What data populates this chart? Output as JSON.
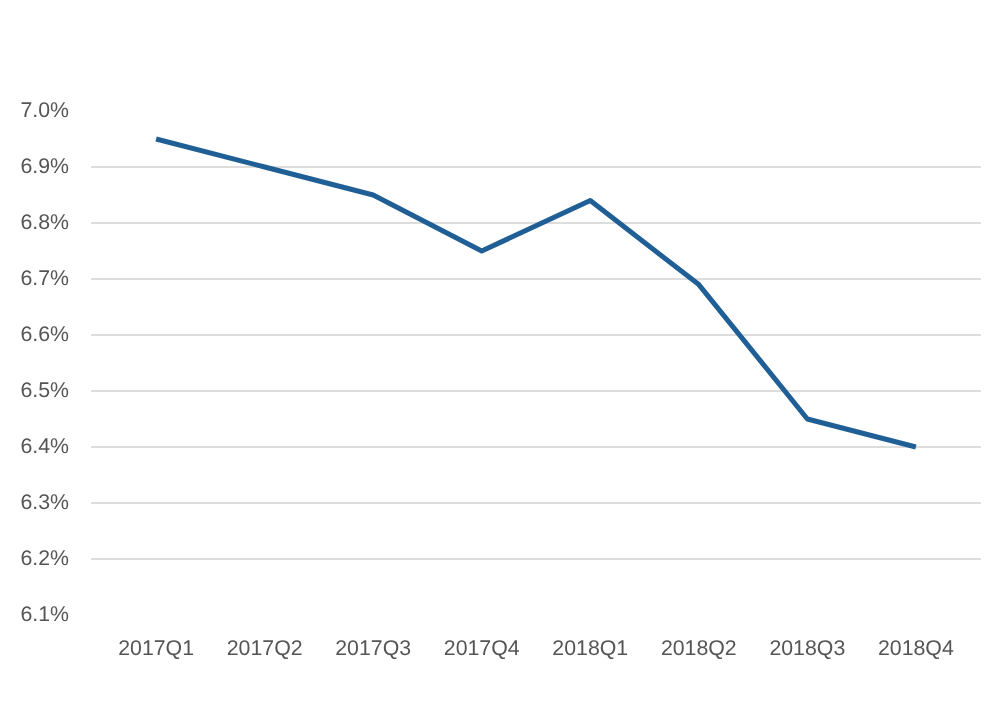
{
  "chart_data": {
    "type": "line",
    "categories": [
      "2017Q1",
      "2017Q2",
      "2017Q3",
      "2017Q4",
      "2018Q1",
      "2018Q2",
      "2018Q3",
      "2018Q4"
    ],
    "series": [
      {
        "color": "#1f5f96",
        "values": [
          6.95,
          6.9,
          6.85,
          6.75,
          6.84,
          6.69,
          6.45,
          6.4
        ]
      }
    ],
    "ylim": [
      6.1,
      7.0
    ],
    "yticks": [
      {
        "value": 6.1,
        "label": "6.1%"
      },
      {
        "value": 6.2,
        "label": "6.2%"
      },
      {
        "value": 6.3,
        "label": "6.3%"
      },
      {
        "value": 6.4,
        "label": "6.4%"
      },
      {
        "value": 6.5,
        "label": "6.5%"
      },
      {
        "value": 6.6,
        "label": "6.6%"
      },
      {
        "value": 6.7,
        "label": "6.7%"
      },
      {
        "value": 6.8,
        "label": "6.8%"
      },
      {
        "value": 6.9,
        "label": "6.9%"
      },
      {
        "value": 7.0,
        "label": "7.0%"
      }
    ],
    "grid": "y",
    "line_style": "solid"
  }
}
